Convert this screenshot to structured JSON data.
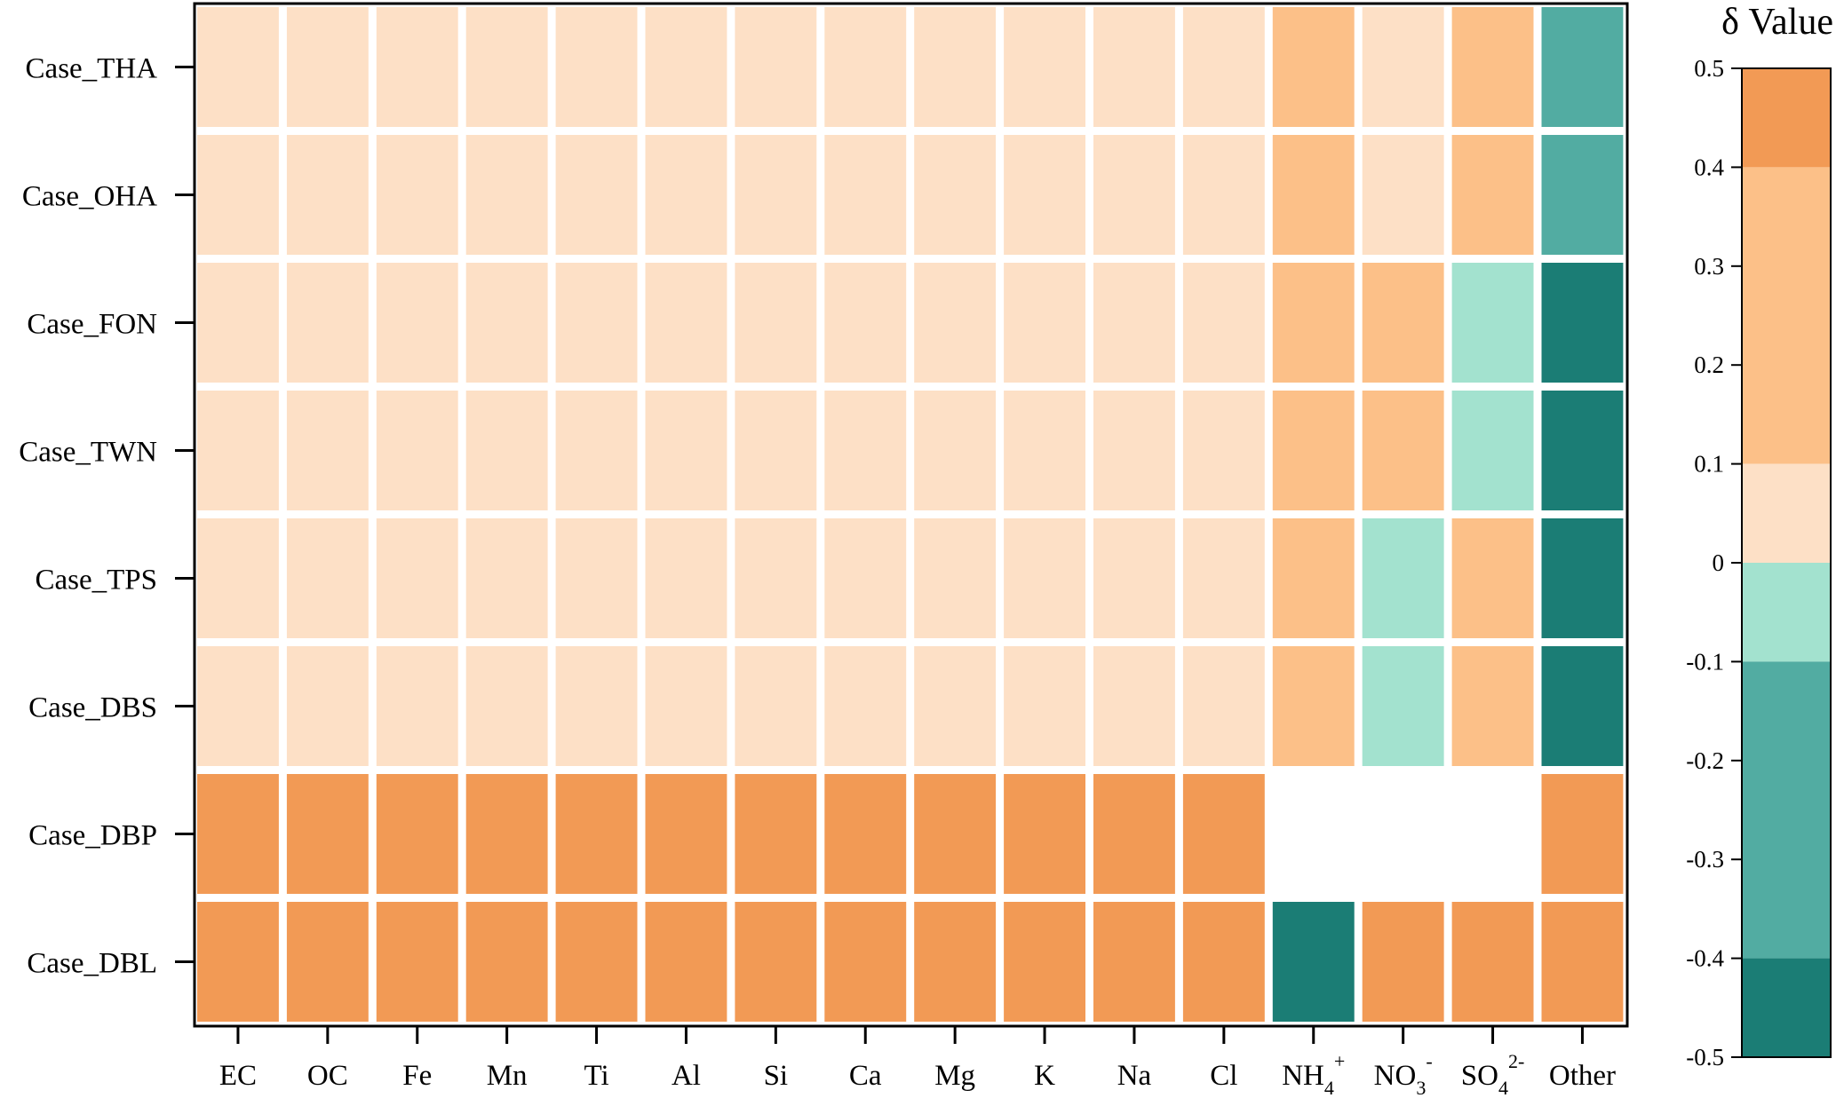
{
  "chart_data": {
    "type": "heatmap",
    "rows": [
      "Case_THA",
      "Case_OHA",
      "Case_FON",
      "Case_TWN",
      "Case_TPS",
      "Case_DBS",
      "Case_DBP",
      "Case_DBL"
    ],
    "columns": [
      {
        "base": "EC"
      },
      {
        "base": "OC"
      },
      {
        "base": "Fe"
      },
      {
        "base": "Mn"
      },
      {
        "base": "Ti"
      },
      {
        "base": "Al"
      },
      {
        "base": "Si"
      },
      {
        "base": "Ca"
      },
      {
        "base": "Mg"
      },
      {
        "base": "K"
      },
      {
        "base": "Na"
      },
      {
        "base": "Cl"
      },
      {
        "base": "NH",
        "sub": "4",
        "sup": "+"
      },
      {
        "base": "NO",
        "sub": "3",
        "sup": "-"
      },
      {
        "base": "SO",
        "sub": "4",
        "sup": "2-"
      },
      {
        "base": "Other"
      }
    ],
    "values": [
      [
        0.05,
        0.05,
        0.05,
        0.05,
        0.05,
        0.05,
        0.05,
        0.05,
        0.05,
        0.05,
        0.05,
        0.05,
        0.25,
        0.05,
        0.25,
        -0.15
      ],
      [
        0.05,
        0.05,
        0.05,
        0.05,
        0.05,
        0.05,
        0.05,
        0.05,
        0.05,
        0.05,
        0.05,
        0.05,
        0.25,
        0.05,
        0.25,
        -0.15
      ],
      [
        0.05,
        0.05,
        0.05,
        0.05,
        0.05,
        0.05,
        0.05,
        0.05,
        0.05,
        0.05,
        0.05,
        0.05,
        0.25,
        0.25,
        -0.05,
        -0.45
      ],
      [
        0.05,
        0.05,
        0.05,
        0.05,
        0.05,
        0.05,
        0.05,
        0.05,
        0.05,
        0.05,
        0.05,
        0.05,
        0.25,
        0.25,
        -0.05,
        -0.45
      ],
      [
        0.05,
        0.05,
        0.05,
        0.05,
        0.05,
        0.05,
        0.05,
        0.05,
        0.05,
        0.05,
        0.05,
        0.05,
        0.25,
        -0.05,
        0.25,
        -0.45
      ],
      [
        0.05,
        0.05,
        0.05,
        0.05,
        0.05,
        0.05,
        0.05,
        0.05,
        0.05,
        0.05,
        0.05,
        0.05,
        0.25,
        -0.05,
        0.25,
        -0.45
      ],
      [
        0.45,
        0.45,
        0.45,
        0.45,
        0.45,
        0.45,
        0.45,
        0.45,
        0.45,
        0.45,
        0.45,
        0.45,
        null,
        null,
        null,
        0.45
      ],
      [
        0.45,
        0.45,
        0.45,
        0.45,
        0.45,
        0.45,
        0.45,
        0.45,
        0.45,
        0.45,
        0.45,
        0.45,
        -0.45,
        0.45,
        0.45,
        0.45
      ]
    ],
    "colorbar": {
      "title": "δ Value",
      "range": [
        -0.5,
        0.5
      ],
      "ticks": [
        "0.5",
        "0.4",
        "0.3",
        "0.2",
        "0.1",
        "0",
        "-0.1",
        "-0.2",
        "-0.3",
        "-0.4",
        "-0.5"
      ],
      "bins": [
        {
          "from": 0.4,
          "to": 0.5,
          "color": "#f29a55"
        },
        {
          "from": 0.1,
          "to": 0.4,
          "color": "#fcc088"
        },
        {
          "from": 0.0,
          "to": 0.1,
          "color": "#fde0c6"
        },
        {
          "from": -0.1,
          "to": 0.0,
          "color": "#a3e2cf"
        },
        {
          "from": -0.4,
          "to": -0.1,
          "color": "#52aca2"
        },
        {
          "from": -0.5,
          "to": -0.4,
          "color": "#1b7d75"
        }
      ],
      "placement": "right"
    },
    "grid": false
  }
}
